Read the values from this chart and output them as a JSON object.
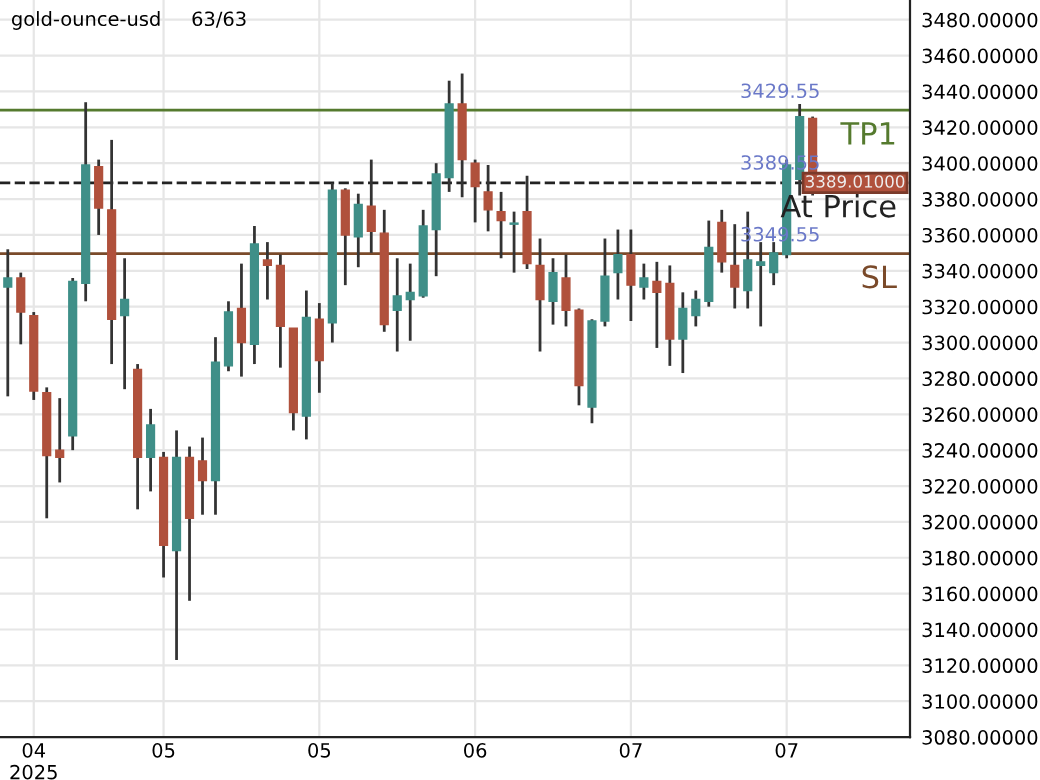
{
  "chart_data": {
    "type": "candlestick",
    "title": "gold-ounce-usd",
    "subtitle": "63/63",
    "categories": [
      null,
      null,
      "04\n2025",
      null,
      null,
      null,
      null,
      null,
      null,
      null,
      null,
      null,
      "05",
      null,
      null,
      null,
      null,
      null,
      null,
      null,
      null,
      null,
      null,
      null,
      "05",
      null,
      null,
      null,
      null,
      null,
      null,
      null,
      null,
      null,
      null,
      null,
      "06",
      null,
      null,
      null,
      null,
      null,
      null,
      null,
      null,
      null,
      null,
      null,
      "07",
      null,
      null,
      null,
      null,
      null,
      null,
      null,
      null,
      null,
      null,
      null,
      "07",
      null,
      null
    ],
    "ohlc": [
      [
        3331,
        3352,
        3270,
        3336
      ],
      [
        3336,
        3339,
        3299,
        3317
      ],
      [
        3315,
        3317,
        3268,
        3273
      ],
      [
        3272,
        3275,
        3202,
        3237
      ],
      [
        3240,
        3269,
        3222,
        3236
      ],
      [
        3248,
        3336,
        3240,
        3334
      ],
      [
        3333,
        3434,
        3323,
        3399
      ],
      [
        3398,
        3402,
        3360,
        3375
      ],
      [
        3374,
        3413,
        3288,
        3313
      ],
      [
        3315,
        3347,
        3274,
        3324
      ],
      [
        3285,
        3288,
        3207,
        3236
      ],
      [
        3236,
        3263,
        3217,
        3254
      ],
      [
        3236,
        3239,
        3169,
        3187
      ],
      [
        3184,
        3251,
        3123,
        3236
      ],
      [
        3236,
        3242,
        3156,
        3202
      ],
      [
        3234,
        3247,
        3204,
        3223
      ],
      [
        3223,
        3303,
        3204,
        3289
      ],
      [
        3287,
        3323,
        3284,
        3317
      ],
      [
        3319,
        3344,
        3281,
        3300
      ],
      [
        3299,
        3365,
        3288,
        3355
      ],
      [
        3346,
        3356,
        3324,
        3343
      ],
      [
        3343,
        3349,
        3286,
        3309
      ],
      [
        3308,
        3308,
        3251,
        3261
      ],
      [
        3259,
        3329,
        3246,
        3314
      ],
      [
        3313,
        3322,
        3272,
        3290
      ],
      [
        3311,
        3389,
        3300,
        3385
      ],
      [
        3385,
        3386,
        3332,
        3360
      ],
      [
        3359,
        3383,
        3342,
        3377
      ],
      [
        3376,
        3402,
        3350,
        3362
      ],
      [
        3361,
        3374,
        3306,
        3310
      ],
      [
        3318,
        3347,
        3295,
        3326
      ],
      [
        3324,
        3344,
        3301,
        3328
      ],
      [
        3326,
        3374,
        3325,
        3365
      ],
      [
        3363,
        3400,
        3337,
        3394
      ],
      [
        3392,
        3446,
        3384,
        3433
      ],
      [
        3433,
        3450,
        3381,
        3402
      ],
      [
        3400,
        3402,
        3367,
        3387
      ],
      [
        3384,
        3399,
        3362,
        3374
      ],
      [
        3373,
        3384,
        3347,
        3368
      ],
      [
        3366,
        3373,
        3339,
        3366
      ],
      [
        3373,
        3393,
        3341,
        3344
      ],
      [
        3343,
        3358,
        3295,
        3324
      ],
      [
        3323,
        3347,
        3310,
        3339
      ],
      [
        3336,
        3349,
        3309,
        3318
      ],
      [
        3318,
        3319,
        3265,
        3276
      ],
      [
        3264,
        3313,
        3255,
        3312
      ],
      [
        3312,
        3358,
        3309,
        3337
      ],
      [
        3339,
        3363,
        3324,
        3349
      ],
      [
        3349,
        3363,
        3312,
        3332
      ],
      [
        3331,
        3344,
        3324,
        3336
      ],
      [
        3334,
        3345,
        3297,
        3328
      ],
      [
        3333,
        3343,
        3287,
        3302
      ],
      [
        3302,
        3328,
        3283,
        3319
      ],
      [
        3315,
        3329,
        3309,
        3324
      ],
      [
        3323,
        3368,
        3320,
        3353
      ],
      [
        3367,
        3374,
        3339,
        3345
      ],
      [
        3343,
        3366,
        3319,
        3331
      ],
      [
        3329,
        3373,
        3319,
        3346
      ],
      [
        3343,
        3356,
        3309,
        3345
      ],
      [
        3339,
        3356,
        3332,
        3350
      ],
      [
        3349,
        3402,
        3347,
        3399
      ],
      [
        3391,
        3433,
        3382,
        3426
      ],
      [
        3425,
        3426,
        3382,
        3389
      ]
    ],
    "ylim": [
      3080,
      3491
    ],
    "yticks": [
      {
        "value": 3080,
        "label": "3080.00000"
      },
      {
        "value": 3100,
        "label": "3100.00000"
      },
      {
        "value": 3120,
        "label": "3120.00000"
      },
      {
        "value": 3140,
        "label": "3140.00000"
      },
      {
        "value": 3160,
        "label": "3160.00000"
      },
      {
        "value": 3180,
        "label": "3180.00000"
      },
      {
        "value": 3200,
        "label": "3200.00000"
      },
      {
        "value": 3220,
        "label": "3220.00000"
      },
      {
        "value": 3240,
        "label": "3240.00000"
      },
      {
        "value": 3260,
        "label": "3260.00000"
      },
      {
        "value": 3280,
        "label": "3280.00000"
      },
      {
        "value": 3300,
        "label": "3300.00000"
      },
      {
        "value": 3320,
        "label": "3320.00000"
      },
      {
        "value": 3340,
        "label": "3340.00000"
      },
      {
        "value": 3360,
        "label": "3360.00000"
      },
      {
        "value": 3380,
        "label": "3380.00000"
      },
      {
        "value": 3400,
        "label": "3400.00000"
      },
      {
        "value": 3420,
        "label": "3420.00000"
      },
      {
        "value": 3440,
        "label": "3440.00000"
      },
      {
        "value": 3460,
        "label": "3460.00000"
      },
      {
        "value": 3480,
        "label": "3480.00000"
      }
    ],
    "ref_lines": [
      {
        "axis": "y",
        "value": 3429.55,
        "label": "TP1",
        "color": "#557a2e",
        "line_style": "solid"
      },
      {
        "axis": "y",
        "value": 3389.01,
        "label": "At Price",
        "color": "#222222",
        "line_style": "dashed"
      },
      {
        "axis": "y",
        "value": 3349.55,
        "label": "SL",
        "color": "#7a4a2a",
        "line_style": "solid"
      }
    ],
    "annotations": [
      {
        "text": "3429.55",
        "y": 3429.55
      },
      {
        "text": "3389.55",
        "y": 3389.55
      },
      {
        "text": "3349.55",
        "y": 3349.55
      },
      "3389.01000"
    ],
    "grid": true,
    "legend": false
  }
}
